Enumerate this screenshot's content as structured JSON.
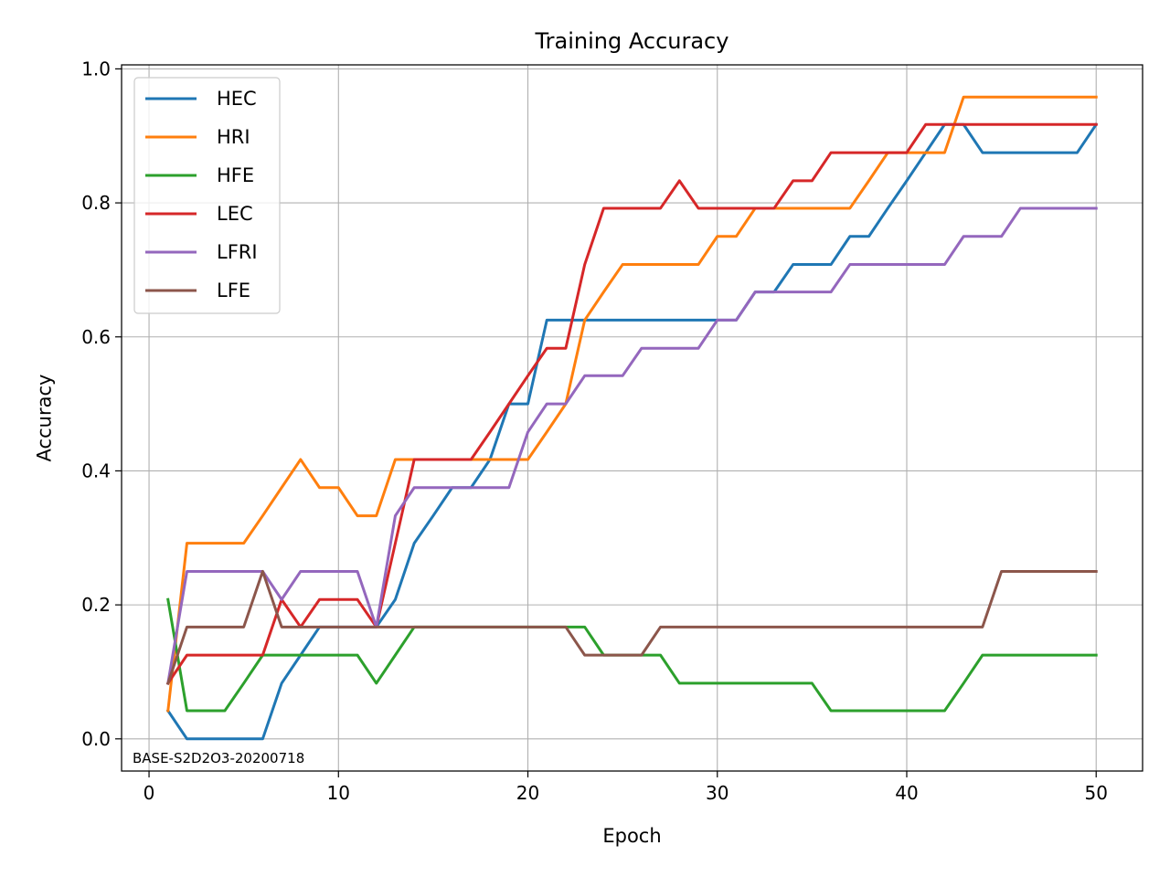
{
  "chart_data": {
    "type": "line",
    "title": "Training Accuracy",
    "xlabel": "Epoch",
    "ylabel": "Accuracy",
    "xlim": [
      -1.45,
      52.45
    ],
    "ylim": [
      -0.048,
      1.006
    ],
    "xticks": [
      0,
      10,
      20,
      30,
      40,
      50
    ],
    "yticks": [
      0.0,
      0.2,
      0.4,
      0.6,
      0.8,
      1.0
    ],
    "xtick_labels": [
      "0",
      "10",
      "20",
      "30",
      "40",
      "50"
    ],
    "ytick_labels": [
      "0.0",
      "0.2",
      "0.4",
      "0.6",
      "0.8",
      "1.0"
    ],
    "grid": true,
    "legend_position": "upper-left",
    "annotation": "BASE-S2D2O3-20200718",
    "x": [
      1,
      2,
      3,
      4,
      5,
      6,
      7,
      8,
      9,
      10,
      11,
      12,
      13,
      14,
      15,
      16,
      17,
      18,
      19,
      20,
      21,
      22,
      23,
      24,
      25,
      26,
      27,
      28,
      29,
      30,
      31,
      32,
      33,
      34,
      35,
      36,
      37,
      38,
      39,
      40,
      41,
      42,
      43,
      44,
      45,
      46,
      47,
      48,
      49,
      50
    ],
    "series": [
      {
        "name": "HEC",
        "color": "#1f77b4",
        "values": [
          0.042,
          0.0,
          0.0,
          0.0,
          0.0,
          0.0,
          0.083,
          0.125,
          0.167,
          0.167,
          0.167,
          0.167,
          0.208,
          0.292,
          0.333,
          0.375,
          0.375,
          0.417,
          0.5,
          0.5,
          0.625,
          0.625,
          0.625,
          0.625,
          0.625,
          0.625,
          0.625,
          0.625,
          0.625,
          0.625,
          0.625,
          0.667,
          0.667,
          0.708,
          0.708,
          0.708,
          0.75,
          0.75,
          0.792,
          0.833,
          0.875,
          0.917,
          0.917,
          0.875,
          0.875,
          0.875,
          0.875,
          0.875,
          0.875,
          0.917
        ]
      },
      {
        "name": "HRI",
        "color": "#ff7f0e",
        "values": [
          0.042,
          0.292,
          0.292,
          0.292,
          0.292,
          0.333,
          0.375,
          0.417,
          0.375,
          0.375,
          0.333,
          0.333,
          0.417,
          0.417,
          0.417,
          0.417,
          0.417,
          0.417,
          0.417,
          0.417,
          0.458,
          0.5,
          0.625,
          0.667,
          0.708,
          0.708,
          0.708,
          0.708,
          0.708,
          0.75,
          0.75,
          0.792,
          0.792,
          0.792,
          0.792,
          0.792,
          0.792,
          0.833,
          0.875,
          0.875,
          0.875,
          0.875,
          0.958,
          0.958,
          0.958,
          0.958,
          0.958,
          0.958,
          0.958,
          0.958
        ]
      },
      {
        "name": "HFE",
        "color": "#2ca02c",
        "values": [
          0.208,
          0.042,
          0.042,
          0.042,
          0.083,
          0.125,
          0.125,
          0.125,
          0.125,
          0.125,
          0.125,
          0.083,
          0.125,
          0.167,
          0.167,
          0.167,
          0.167,
          0.167,
          0.167,
          0.167,
          0.167,
          0.167,
          0.167,
          0.125,
          0.125,
          0.125,
          0.125,
          0.083,
          0.083,
          0.083,
          0.083,
          0.083,
          0.083,
          0.083,
          0.083,
          0.042,
          0.042,
          0.042,
          0.042,
          0.042,
          0.042,
          0.042,
          0.083,
          0.125,
          0.125,
          0.125,
          0.125,
          0.125,
          0.125,
          0.125
        ]
      },
      {
        "name": "LEC",
        "color": "#d62728",
        "values": [
          0.083,
          0.125,
          0.125,
          0.125,
          0.125,
          0.125,
          0.208,
          0.167,
          0.208,
          0.208,
          0.208,
          0.167,
          0.292,
          0.417,
          0.417,
          0.417,
          0.417,
          0.458,
          0.5,
          0.542,
          0.583,
          0.583,
          0.708,
          0.792,
          0.792,
          0.792,
          0.792,
          0.833,
          0.792,
          0.792,
          0.792,
          0.792,
          0.792,
          0.833,
          0.833,
          0.875,
          0.875,
          0.875,
          0.875,
          0.875,
          0.917,
          0.917,
          0.917,
          0.917,
          0.917,
          0.917,
          0.917,
          0.917,
          0.917,
          0.917
        ]
      },
      {
        "name": "LFRI",
        "color": "#9467bd",
        "values": [
          0.083,
          0.25,
          0.25,
          0.25,
          0.25,
          0.25,
          0.208,
          0.25,
          0.25,
          0.25,
          0.25,
          0.167,
          0.333,
          0.375,
          0.375,
          0.375,
          0.375,
          0.375,
          0.375,
          0.458,
          0.5,
          0.5,
          0.542,
          0.542,
          0.542,
          0.583,
          0.583,
          0.583,
          0.583,
          0.625,
          0.625,
          0.667,
          0.667,
          0.667,
          0.667,
          0.667,
          0.708,
          0.708,
          0.708,
          0.708,
          0.708,
          0.708,
          0.75,
          0.75,
          0.75,
          0.792,
          0.792,
          0.792,
          0.792,
          0.792
        ]
      },
      {
        "name": "LFE",
        "color": "#8c564b",
        "values": [
          0.083,
          0.167,
          0.167,
          0.167,
          0.167,
          0.25,
          0.167,
          0.167,
          0.167,
          0.167,
          0.167,
          0.167,
          0.167,
          0.167,
          0.167,
          0.167,
          0.167,
          0.167,
          0.167,
          0.167,
          0.167,
          0.167,
          0.125,
          0.125,
          0.125,
          0.125,
          0.167,
          0.167,
          0.167,
          0.167,
          0.167,
          0.167,
          0.167,
          0.167,
          0.167,
          0.167,
          0.167,
          0.167,
          0.167,
          0.167,
          0.167,
          0.167,
          0.167,
          0.167,
          0.25,
          0.25,
          0.25,
          0.25,
          0.25,
          0.25
        ]
      }
    ]
  }
}
